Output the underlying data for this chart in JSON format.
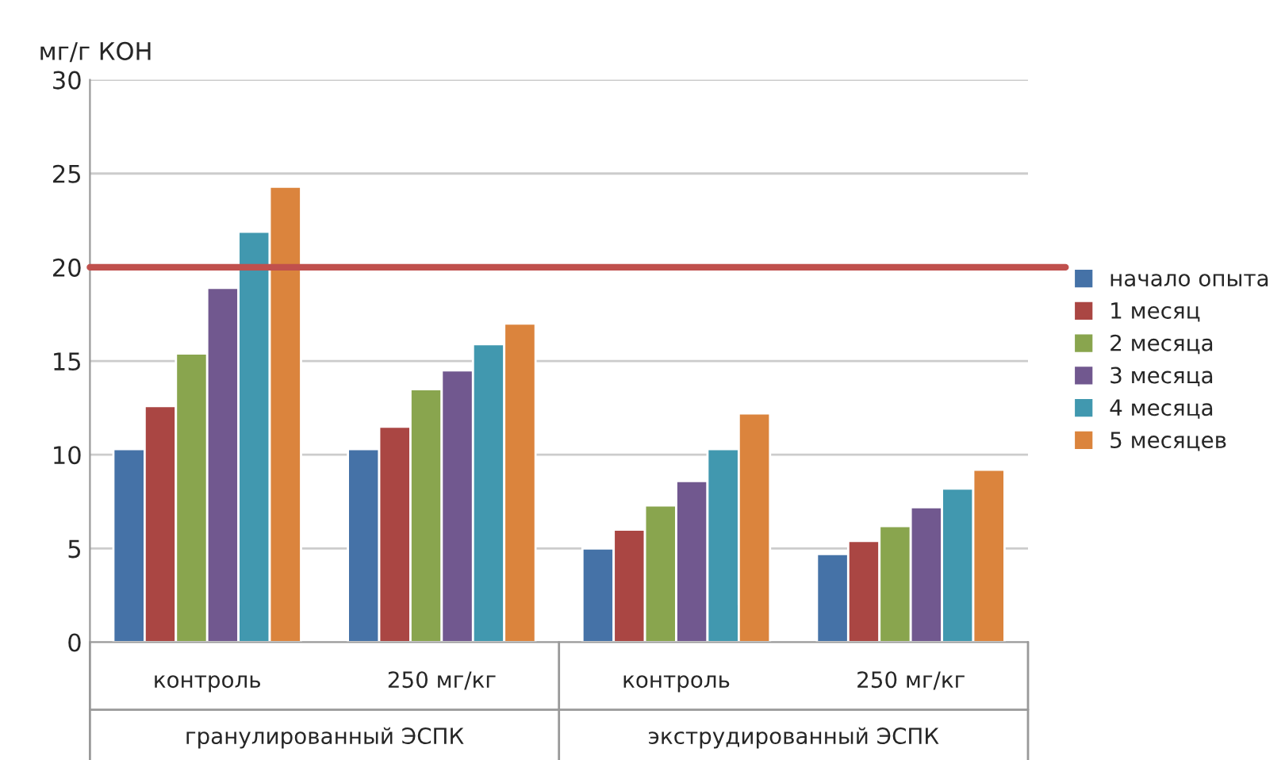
{
  "chart_data": {
    "type": "bar",
    "ylabel": "мг/г КОН",
    "categories": [
      "контроль",
      "250 мг/кг",
      "контроль",
      "250 мг/кг"
    ],
    "series": [
      {
        "name": "начало опыта",
        "color": "#4572a7",
        "values": [
          10.3,
          10.3,
          5.0,
          4.7
        ]
      },
      {
        "name": "1 месяц",
        "color": "#aa4643",
        "values": [
          12.6,
          11.5,
          6.0,
          5.4
        ]
      },
      {
        "name": "2 месяца",
        "color": "#89a54e",
        "values": [
          15.4,
          13.5,
          7.3,
          6.2
        ]
      },
      {
        "name": "3 месяца",
        "color": "#71588f",
        "values": [
          18.9,
          14.5,
          8.6,
          7.2
        ]
      },
      {
        "name": "4 месяца",
        "color": "#4198af",
        "values": [
          21.9,
          15.9,
          10.3,
          8.2
        ]
      },
      {
        "name": "5 месяцев",
        "color": "#db843d",
        "values": [
          24.3,
          17.0,
          12.2,
          9.2
        ]
      }
    ],
    "annotations": [
      "гранулированный ЭСПК",
      "экструдированный ЭСПК"
    ],
    "ref_lines": [
      {
        "axis": "y",
        "value": 20,
        "color": "#c0504d"
      }
    ],
    "ylim": [
      0,
      30
    ],
    "yticks": [
      0,
      5,
      10,
      15,
      20,
      25,
      30
    ],
    "grid": "y",
    "legend": "right"
  }
}
